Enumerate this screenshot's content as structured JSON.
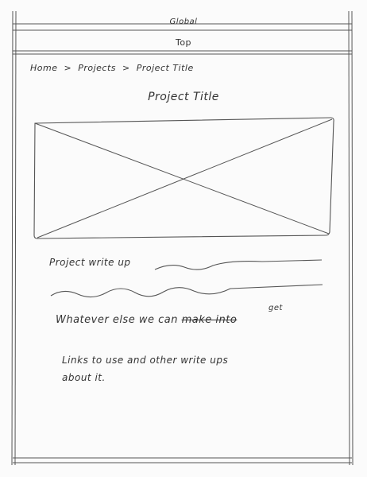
{
  "header": {
    "global_label": "Global",
    "top_label": "Top"
  },
  "breadcrumb": {
    "home": "Home",
    "sep1": ">",
    "projects": "Projects",
    "sep2": ">",
    "current": "Project Title"
  },
  "main": {
    "page_title": "Project Title",
    "writeup_label": "Project write up",
    "whatever_prefix": "Whatever else we can",
    "whatever_strike": "make into",
    "whatever_insert": "get",
    "links_line1": "Links to use and other write ups",
    "links_line2": "about it."
  }
}
